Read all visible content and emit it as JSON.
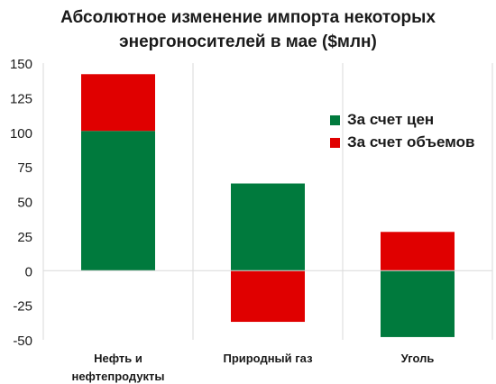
{
  "chart_data": {
    "type": "bar",
    "stacked": true,
    "title_lines": [
      "Абсолютное изменение импорта некоторых",
      "энергоносителей в мае ($млн)"
    ],
    "xlabel": "",
    "ylabel": "",
    "categories": [
      [
        "Нефть и",
        "нефтепродукты"
      ],
      [
        "Природный газ"
      ],
      [
        "Уголь"
      ]
    ],
    "series": [
      {
        "name": "За счет цен",
        "color": "#007a3d",
        "values": [
          101,
          63,
          -48
        ]
      },
      {
        "name": "За счет объемов",
        "color": "#e00000",
        "values": [
          41,
          -37,
          28
        ]
      }
    ],
    "ylim": [
      -50,
      150
    ],
    "yticks": [
      -50,
      -25,
      0,
      25,
      50,
      75,
      100,
      125,
      150
    ],
    "grid": "vertical category separators",
    "legend_position": "right, inside plot"
  }
}
